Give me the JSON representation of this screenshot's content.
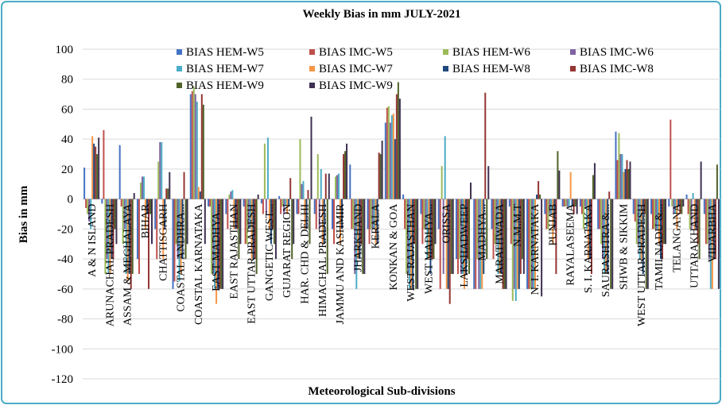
{
  "chart_data": {
    "type": "bar",
    "title": "Weekly Bias in mm JULY-2021",
    "x_label": "Meteorological Sub-divisions",
    "y_label": "Bias in mm",
    "categories": [
      "A & N ISLAND",
      "ARUNACHAL PRADESH",
      "ASSAM & MEGHALAYA",
      "BIHAR",
      "CHATTISGARH",
      "COASTAL ANDHRA...",
      "COASTAL KARNATAKA",
      "EAST MADHYA...",
      "EAST RAJASTHAN",
      "EAST UTTAR PRADESH",
      "GANGETIC WEST...",
      "GUJARAT REGION",
      "HAR. CHD & DELHI",
      "HIMACHAL PRADESH",
      "JAMMU AND KASHMIR",
      "JHARKHAND",
      "KERALA",
      "KONKAN & GOA",
      "WEST RAJASTHAN",
      "WEST MADHYA...",
      "ORISSA",
      "LAKSHADWEEP",
      "MADHYA...",
      "MARATHWADA",
      "N.M.M.T",
      "N. I. KARNATAKA",
      "PUNJAB",
      "RAYALASEEMA",
      "S. I. KARNATAKA",
      "SAURASHTRA &...",
      "SHWB & SIKKIM",
      "WEST UTTAR PRADESH",
      "TAMILNADU &...",
      "TELANGANA",
      "UTTARAKHAND",
      "VIDARBHA"
    ],
    "series": [
      {
        "name": "BIAS HEM-W5",
        "color": "#4472c4",
        "values": [
          21,
          -3,
          36,
          -40,
          -20,
          -60,
          70,
          -5,
          -10,
          -5,
          -3,
          2,
          -10,
          -10,
          -20,
          23,
          -20,
          51,
          3,
          -10,
          -20,
          -40,
          -60,
          -20,
          -5,
          -60,
          -10,
          -5,
          -5,
          -20,
          45,
          -10,
          -10,
          -5,
          3,
          -10
        ]
      },
      {
        "name": "BIAS IMC-W5",
        "color": "#c0504d",
        "values": [
          -6,
          46,
          -5,
          -50,
          -40,
          -55,
          72,
          -5,
          -20,
          -30,
          -10,
          -10,
          -10,
          -20,
          -30,
          -20,
          -30,
          61,
          -20,
          -30,
          -60,
          -50,
          -60,
          -40,
          -30,
          -60,
          -20,
          -5,
          -10,
          -20,
          26,
          -15,
          -20,
          53,
          -10,
          -30
        ]
      },
      {
        "name": "BIAS HEM-W6",
        "color": "#9bbb59",
        "values": [
          -10,
          -50,
          -30,
          11,
          25,
          -30,
          75,
          -50,
          3,
          -30,
          37,
          -5,
          40,
          30,
          15,
          -20,
          -20,
          62,
          -50,
          -20,
          22,
          -40,
          -40,
          -30,
          -68,
          -60,
          -20,
          -5,
          -20,
          -30,
          44,
          -30,
          -20,
          -5,
          -20,
          -30
        ]
      },
      {
        "name": "BIAS IMC-W6",
        "color": "#8064a2",
        "values": [
          -15,
          -40,
          -20,
          15,
          38,
          -40,
          70,
          -50,
          5,
          -20,
          -10,
          -10,
          10,
          -20,
          16,
          -50,
          -20,
          51,
          -50,
          -20,
          -50,
          -50,
          -60,
          -30,
          -60,
          -60,
          -10,
          -5,
          -5,
          -40,
          30,
          -30,
          -20,
          -10,
          -20,
          -40
        ]
      },
      {
        "name": "BIAS HEM-W7",
        "color": "#4bacc6",
        "values": [
          -20,
          -50,
          -50,
          15,
          38,
          -55,
          65,
          -60,
          6,
          -20,
          41,
          -5,
          12,
          20,
          17,
          -60,
          -20,
          56,
          -60,
          -40,
          42,
          -50,
          -60,
          -50,
          -68,
          -60,
          -10,
          -5,
          -20,
          -50,
          30,
          -40,
          -20,
          -10,
          4,
          -60
        ]
      },
      {
        "name": "BIAS IMC-W7",
        "color": "#f79646",
        "values": [
          42,
          -50,
          -55,
          -20,
          -40,
          -50,
          8,
          -70,
          -20,
          -40,
          -20,
          -10,
          -20,
          -30,
          -30,
          -40,
          -30,
          57,
          -60,
          -40,
          -60,
          -60,
          -60,
          -50,
          -60,
          -60,
          -30,
          18,
          -40,
          -50,
          18,
          -40,
          -30,
          -20,
          -20,
          -60
        ]
      },
      {
        "name": "BIAS HEM-W8",
        "color": "#1f497d",
        "values": [
          37,
          -40,
          -50,
          -10,
          -20,
          -40,
          5,
          -60,
          -20,
          -40,
          -30,
          -5,
          -20,
          -30,
          -20,
          -40,
          -30,
          40,
          -60,
          -50,
          -60,
          -50,
          -50,
          -50,
          -60,
          3,
          -20,
          -5,
          -40,
          -50,
          20,
          -50,
          -40,
          -5,
          -20,
          -40
        ]
      },
      {
        "name": "BIAS IMC-W8",
        "color": "#943634",
        "values": [
          35,
          -40,
          -60,
          -60,
          7,
          18,
          70,
          -60,
          -20,
          -40,
          -20,
          14,
          6,
          17,
          30,
          -30,
          31,
          70,
          -30,
          -40,
          -70,
          -40,
          71,
          -60,
          -50,
          12,
          -50,
          -10,
          -50,
          5,
          26,
          -10,
          -40,
          -10,
          -30,
          -40
        ]
      },
      {
        "name": "BIAS HEM-W9",
        "color": "#4f6228",
        "values": [
          30,
          -20,
          -50,
          -10,
          7,
          -40,
          63,
          -60,
          -40,
          -50,
          -30,
          -40,
          -30,
          -50,
          32,
          -50,
          30,
          78,
          -60,
          -40,
          -50,
          -50,
          -40,
          -60,
          -40,
          3,
          32,
          -5,
          16,
          -60,
          20,
          -60,
          -30,
          -10,
          -40,
          23
        ]
      },
      {
        "name": "BIAS IMC-W9",
        "color": "#3f3151",
        "values": [
          41,
          -30,
          4,
          -30,
          18,
          -30,
          -30,
          -60,
          -30,
          3,
          -40,
          -30,
          55,
          17,
          37,
          -50,
          39,
          67,
          -60,
          -30,
          -50,
          11,
          22,
          -60,
          -50,
          -65,
          19,
          -10,
          24,
          -60,
          25,
          -60,
          -30,
          -5,
          25,
          -60
        ]
      }
    ],
    "ylim": [
      -120,
      100
    ],
    "yticks": [
      -120,
      -100,
      -80,
      -60,
      -40,
      -20,
      0,
      20,
      40,
      60,
      80,
      100
    ],
    "grid": true
  }
}
